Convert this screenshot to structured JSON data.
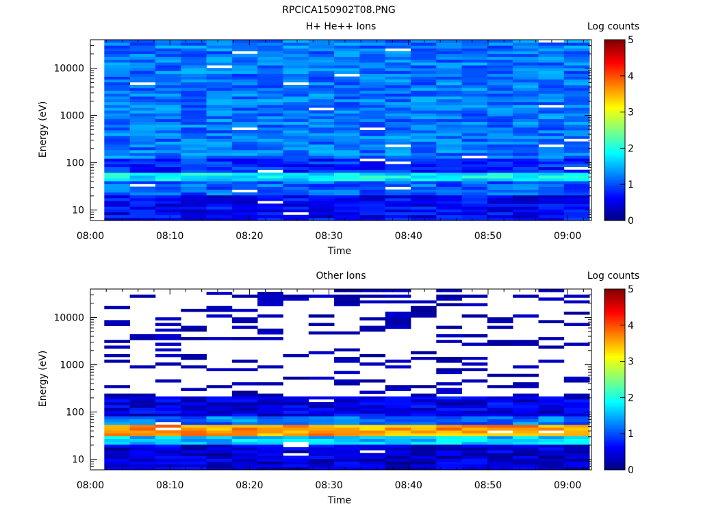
{
  "figure": {
    "title": "RPCICA150902T08.PNG"
  },
  "chart_data": [
    {
      "type": "heatmap",
      "title": "H+ He++ Ions",
      "xlabel": "Time",
      "ylabel": "Energy (eV)",
      "y_scale": "log",
      "x_ticks": [
        "08:00",
        "08:10",
        "08:20",
        "08:30",
        "08:40",
        "08:50",
        "09:00"
      ],
      "y_ticks": [
        "10",
        "100",
        "1000",
        "10000"
      ],
      "xlim": [
        "08:00",
        "09:03"
      ],
      "ylim": [
        6,
        40000
      ],
      "x_start": "08:01:45",
      "x_end": "09:02:45",
      "columns": 19,
      "colorbar": {
        "label": "Log counts",
        "range": [
          0,
          5
        ],
        "ticks": [
          "0",
          "1",
          "2",
          "3",
          "4",
          "5"
        ]
      },
      "profile": {
        "description_levels": "typical log-count level per energy band (eV: level)",
        "bands": [
          {
            "emin": 6,
            "emax": 20,
            "level": 0.6
          },
          {
            "emin": 20,
            "emax": 40,
            "level": 1.1
          },
          {
            "emin": 40,
            "emax": 60,
            "level": 1.8
          },
          {
            "emin": 60,
            "emax": 120,
            "level": 0.8
          },
          {
            "emin": 120,
            "emax": 40000,
            "level": 1.2
          }
        ],
        "gaps": [],
        "sparse_above": 0
      }
    },
    {
      "type": "heatmap",
      "title": "Other Ions",
      "xlabel": "Time",
      "ylabel": "Energy (eV)",
      "y_scale": "log",
      "x_ticks": [
        "08:00",
        "08:10",
        "08:20",
        "08:30",
        "08:40",
        "08:50",
        "09:00"
      ],
      "y_ticks": [
        "10",
        "100",
        "1000",
        "10000"
      ],
      "xlim": [
        "08:00",
        "09:03"
      ],
      "ylim": [
        6,
        40000
      ],
      "x_start": "08:01:45",
      "x_end": "09:02:45",
      "columns": 19,
      "colorbar": {
        "label": "Log counts",
        "range": [
          0,
          5
        ],
        "ticks": [
          "0",
          "1",
          "2",
          "3",
          "4",
          "5"
        ]
      },
      "profile": {
        "bands": [
          {
            "emin": 6,
            "emax": 22,
            "level": 0.4
          },
          {
            "emin": 22,
            "emax": 32,
            "level": 1.6
          },
          {
            "emin": 32,
            "emax": 55,
            "level": 3.6
          },
          {
            "emin": 55,
            "emax": 80,
            "level": 1.2
          },
          {
            "emin": 80,
            "emax": 220,
            "level": 0.5
          },
          {
            "emin": 220,
            "emax": 40000,
            "level": 0.25
          }
        ],
        "sparse_above": 220
      }
    }
  ]
}
